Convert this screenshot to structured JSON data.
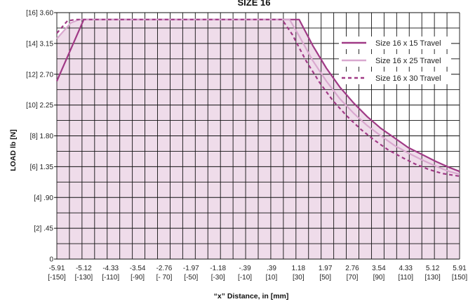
{
  "chart_data": {
    "type": "line",
    "title": "SIZE 16",
    "xlabel": "“x” Distance, in  [mm]",
    "ylabel": "LOAD  lb  [N]",
    "xlim": [
      -5.91,
      5.91
    ],
    "ylim": [
      0,
      3.6
    ],
    "grid": true,
    "legend_position": "top-right",
    "x_ticks": [
      {
        "top": "-5.91",
        "bottom": "[-150]"
      },
      {
        "top": "-5.12",
        "bottom": "[-130]"
      },
      {
        "top": "-4.33",
        "bottom": "[-110]"
      },
      {
        "top": "-3.54",
        "bottom": "[-90]"
      },
      {
        "top": "-2.76",
        "bottom": "[- 70]"
      },
      {
        "top": "-1.97",
        "bottom": "[-50]"
      },
      {
        "top": "-1.18",
        "bottom": "[-30]"
      },
      {
        "top": "-.39",
        "bottom": "[-10]"
      },
      {
        "top": ".39",
        "bottom": "[10]"
      },
      {
        "top": "1.18",
        "bottom": "[30]"
      },
      {
        "top": "1.97",
        "bottom": "[50]"
      },
      {
        "top": "2.76",
        "bottom": "[70]"
      },
      {
        "top": "3.54",
        "bottom": "[90]"
      },
      {
        "top": "4.33",
        "bottom": "[110]"
      },
      {
        "top": "5.12",
        "bottom": "[130]"
      },
      {
        "top": "5.91",
        "bottom": "[150]"
      }
    ],
    "y_ticks": [
      {
        "value": 3.6,
        "label": "[16]  3.60"
      },
      {
        "value": 3.15,
        "label": "[14]  3.15"
      },
      {
        "value": 2.7,
        "label": "[12]  2.70"
      },
      {
        "value": 2.25,
        "label": "[10]  2.25"
      },
      {
        "value": 1.8,
        "label": "[8]  1.80"
      },
      {
        "value": 1.35,
        "label": "[6]  1.35"
      },
      {
        "value": 0.9,
        "label": "[4]  .90"
      },
      {
        "value": 0.45,
        "label": "[2]  .45"
      },
      {
        "value": 0,
        "label": "0"
      }
    ],
    "series": [
      {
        "name": "Size 16 x 15 Travel",
        "color": "#a03a86",
        "dash": "solid",
        "x": [
          -5.91,
          -5.12,
          1.2,
          1.6,
          2.0,
          2.4,
          2.8,
          3.2,
          3.6,
          4.0,
          4.4,
          4.8,
          5.2,
          5.6,
          5.91
        ],
        "y": [
          2.6,
          3.5,
          3.5,
          3.12,
          2.79,
          2.51,
          2.28,
          2.08,
          1.91,
          1.77,
          1.63,
          1.53,
          1.43,
          1.34,
          1.28
        ]
      },
      {
        "name": "Size 16 x 25 Travel",
        "color": "#d9a8cf",
        "dash": "solid",
        "x": [
          -5.91,
          -5.5,
          -5.25,
          0.92,
          1.2,
          1.6,
          2.0,
          2.4,
          2.8,
          3.2,
          3.6,
          4.0,
          4.4,
          4.8,
          5.2,
          5.6,
          5.91
        ],
        "y": [
          3.22,
          3.45,
          3.5,
          3.5,
          3.26,
          2.9,
          2.6,
          2.34,
          2.13,
          1.95,
          1.8,
          1.66,
          1.55,
          1.45,
          1.36,
          1.28,
          1.24
        ]
      },
      {
        "name": "Size 16 x 30 Travel",
        "color": "#a03a86",
        "dash": "dashed",
        "x": [
          -5.91,
          -5.6,
          -5.35,
          0.7,
          1.0,
          1.4,
          1.8,
          2.2,
          2.6,
          3.0,
          3.4,
          3.8,
          4.2,
          4.6,
          5.0,
          5.4,
          5.91
        ],
        "y": [
          3.3,
          3.48,
          3.5,
          3.5,
          3.28,
          2.9,
          2.58,
          2.31,
          2.09,
          1.9,
          1.74,
          1.6,
          1.49,
          1.39,
          1.31,
          1.25,
          1.21
        ]
      }
    ],
    "colors": {
      "fill": "#efdcea",
      "grid": "#111111",
      "accent": "#a03a86",
      "accent_light": "#d9a8cf"
    }
  }
}
